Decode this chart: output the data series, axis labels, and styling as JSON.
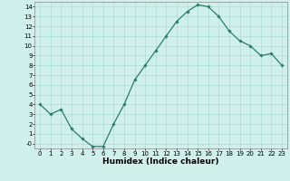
{
  "x": [
    0,
    1,
    2,
    3,
    4,
    5,
    6,
    7,
    8,
    9,
    10,
    11,
    12,
    13,
    14,
    15,
    16,
    17,
    18,
    19,
    20,
    21,
    22,
    23
  ],
  "y": [
    4,
    3,
    3.5,
    1.5,
    0.5,
    -0.3,
    -0.3,
    2,
    4,
    6.5,
    8,
    9.5,
    11,
    12.5,
    13.5,
    14.2,
    14,
    13,
    11.5,
    10.5,
    10,
    9,
    9.2,
    8
  ],
  "line_color": "#2a7d6e",
  "marker": "D",
  "marker_size": 1.8,
  "bg_color": "#cff0eb",
  "grid_color": "#a8d8d2",
  "xlabel": "Humidex (Indice chaleur)",
  "xlabel_fontsize": 6.5,
  "xlabel_bold": true,
  "ylim": [
    -0.5,
    14.5
  ],
  "xlim": [
    -0.5,
    23.5
  ],
  "yticks": [
    0,
    1,
    2,
    3,
    4,
    5,
    6,
    7,
    8,
    9,
    10,
    11,
    12,
    13,
    14
  ],
  "ytick_labels": [
    "-0",
    "1",
    "2",
    "3",
    "4",
    "5",
    "6",
    "7",
    "8",
    "9",
    "10",
    "11",
    "12",
    "13",
    "14"
  ],
  "xticks": [
    0,
    1,
    2,
    3,
    4,
    5,
    6,
    7,
    8,
    9,
    10,
    11,
    12,
    13,
    14,
    15,
    16,
    17,
    18,
    19,
    20,
    21,
    22,
    23
  ],
  "tick_fontsize": 5.0,
  "line_width": 0.9
}
